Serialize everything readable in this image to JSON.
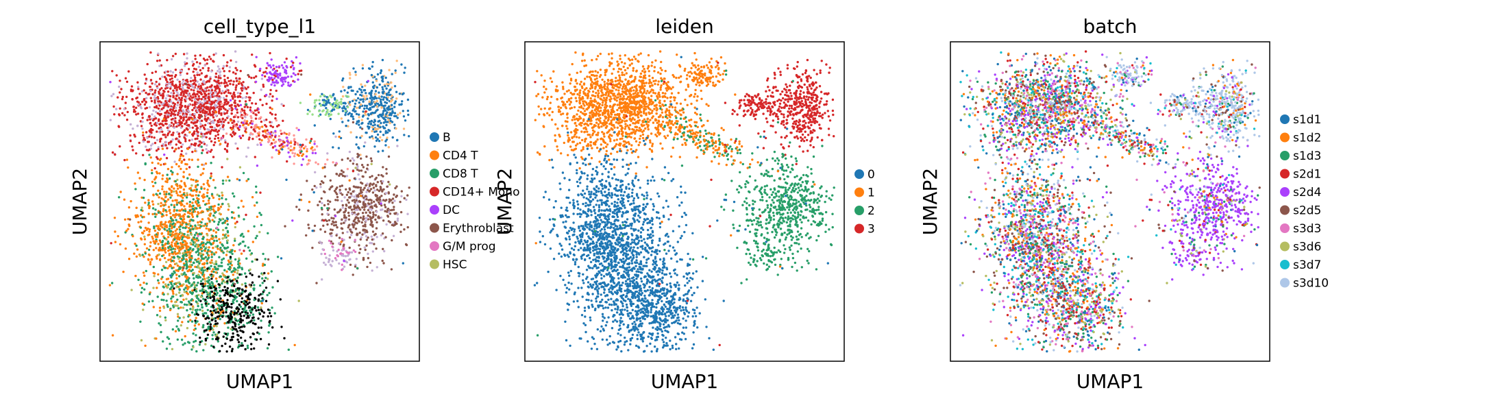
{
  "chart_data": [
    {
      "type": "scatter",
      "title": "cell_type_l1",
      "xlabel": "UMAP1",
      "ylabel": "UMAP2",
      "grid": false,
      "ticks": false,
      "legend_position": "right",
      "series": [
        {
          "name": "B",
          "color": "#1f77b4"
        },
        {
          "name": "CD4 T",
          "color": "#ff7f0e"
        },
        {
          "name": "CD8 T",
          "color": "#279e68"
        },
        {
          "name": "CD14+ Mono",
          "color": "#d62728"
        },
        {
          "name": "DC",
          "color": "#aa40fc"
        },
        {
          "name": "Erythroblast",
          "color": "#8c564b"
        },
        {
          "name": "G/M prog",
          "color": "#e377c2"
        },
        {
          "name": "HSC",
          "color": "#b5bd61"
        }
      ],
      "extra_colors": [
        "#aec7e8",
        "#ffbb78",
        "#98df8a",
        "#ff9896",
        "#c5b0d5"
      ]
    },
    {
      "type": "scatter",
      "title": "leiden",
      "xlabel": "UMAP1",
      "ylabel": "UMAP2",
      "grid": false,
      "ticks": false,
      "legend_position": "right",
      "series": [
        {
          "name": "0",
          "color": "#1f77b4"
        },
        {
          "name": "1",
          "color": "#ff7f0e"
        },
        {
          "name": "2",
          "color": "#279e68"
        },
        {
          "name": "3",
          "color": "#d62728"
        }
      ]
    },
    {
      "type": "scatter",
      "title": "batch",
      "xlabel": "UMAP1",
      "ylabel": "UMAP2",
      "grid": false,
      "ticks": false,
      "legend_position": "right",
      "series": [
        {
          "name": "s1d1",
          "color": "#1f77b4"
        },
        {
          "name": "s1d2",
          "color": "#ff7f0e"
        },
        {
          "name": "s1d3",
          "color": "#279e68"
        },
        {
          "name": "s2d1",
          "color": "#d62728"
        },
        {
          "name": "s2d4",
          "color": "#aa40fc"
        },
        {
          "name": "s2d5",
          "color": "#8c564b"
        },
        {
          "name": "s3d3",
          "color": "#e377c2"
        },
        {
          "name": "s3d6",
          "color": "#b5bd61"
        },
        {
          "name": "s3d7",
          "color": "#17becf"
        },
        {
          "name": "s3d10",
          "color": "#aec7e8"
        }
      ]
    }
  ]
}
